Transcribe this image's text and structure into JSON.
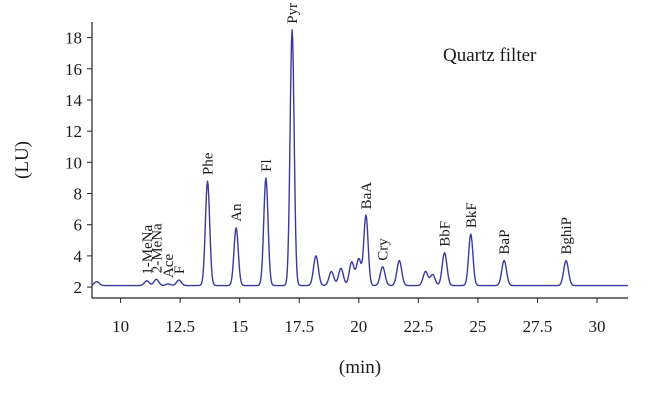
{
  "chart_data": {
    "type": "line",
    "title": "",
    "panel_label": "Quartz filter",
    "xlabel": "(min)",
    "ylabel": "(LU)",
    "xlim": [
      8.8,
      31.3
    ],
    "ylim": [
      1.3,
      19.0
    ],
    "x_ticks": [
      10,
      12.5,
      15,
      17.5,
      20,
      22.5,
      25,
      27.5,
      30
    ],
    "x_tick_labels": [
      "10",
      "12.5",
      "15",
      "17.5",
      "20",
      "22.5",
      "25",
      "27.5",
      "30"
    ],
    "y_ticks": [
      2,
      4,
      6,
      8,
      10,
      12,
      14,
      16,
      18
    ],
    "y_tick_labels": [
      "2",
      "4",
      "6",
      "8",
      "10",
      "12",
      "14",
      "16",
      "18"
    ],
    "grid": false,
    "line_color": "#3a3a9e",
    "baseline": 2.1,
    "peaks": [
      {
        "label": "1-MeNa",
        "x": 11.1,
        "y": 2.4
      },
      {
        "label": "2-MeNa",
        "x": 11.5,
        "y": 2.5
      },
      {
        "label": "Ace",
        "x": 12.0,
        "y": 2.2
      },
      {
        "label": "F",
        "x": 12.45,
        "y": 2.45
      },
      {
        "label": "Phe",
        "x": 13.65,
        "y": 8.8
      },
      {
        "label": "An",
        "x": 14.85,
        "y": 5.8
      },
      {
        "label": "Fl",
        "x": 16.1,
        "y": 9.0
      },
      {
        "label": "Pyr",
        "x": 17.2,
        "y": 18.5
      },
      {
        "label": "BaA",
        "x": 20.3,
        "y": 6.6
      },
      {
        "label": "Cry",
        "x": 21.0,
        "y": 3.3
      },
      {
        "label": "BbF",
        "x": 23.6,
        "y": 4.2
      },
      {
        "label": "BkF",
        "x": 24.7,
        "y": 5.4
      },
      {
        "label": "BaP",
        "x": 26.1,
        "y": 3.7
      },
      {
        "label": "BghiP",
        "x": 28.7,
        "y": 3.7
      }
    ],
    "minor_peaks": [
      {
        "x": 9.0,
        "y": 2.35
      },
      {
        "x": 18.2,
        "y": 4.0
      },
      {
        "x": 18.85,
        "y": 3.0
      },
      {
        "x": 19.25,
        "y": 3.2
      },
      {
        "x": 19.7,
        "y": 3.6
      },
      {
        "x": 20.0,
        "y": 3.8
      },
      {
        "x": 21.7,
        "y": 3.7
      },
      {
        "x": 22.8,
        "y": 3.0
      },
      {
        "x": 23.1,
        "y": 2.8
      }
    ]
  }
}
